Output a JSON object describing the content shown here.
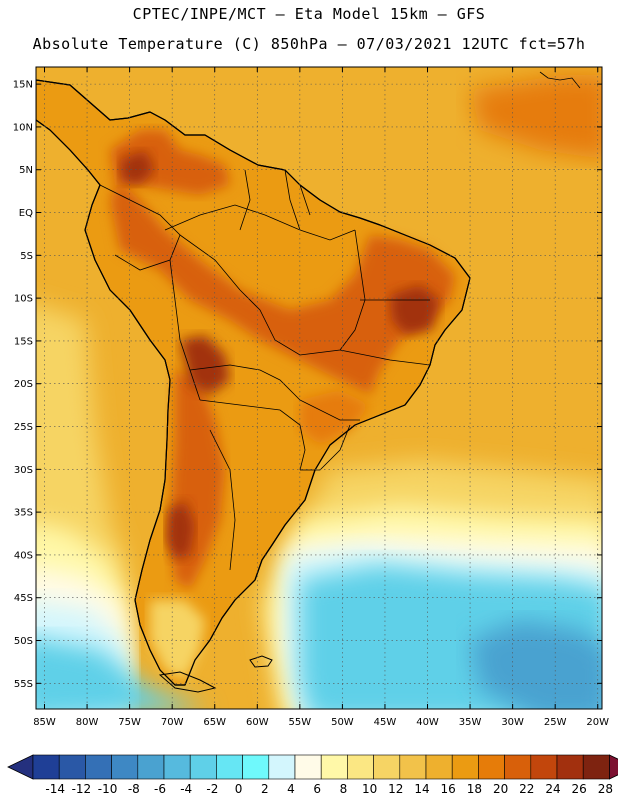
{
  "title": {
    "line1": "CPTEC/INPE/MCT –  Eta Model 15km – GFS",
    "line2": "Absolute Temperature (C) 850hPa – 07/03/2021 12UTC fct=57h"
  },
  "lat_labels": [
    "15N",
    "10N",
    "5N",
    "EQ",
    "5S",
    "10S",
    "15S",
    "20S",
    "25S",
    "30S",
    "35S",
    "40S",
    "45S",
    "50S",
    "55S"
  ],
  "lat_values": [
    15,
    10,
    5,
    0,
    -5,
    -10,
    -15,
    -20,
    -25,
    -30,
    -35,
    -40,
    -45,
    -50,
    -55
  ],
  "lon_labels": [
    "85W",
    "80W",
    "75W",
    "70W",
    "65W",
    "60W",
    "55W",
    "50W",
    "45W",
    "40W",
    "35W",
    "30W",
    "25W",
    "20W"
  ],
  "lon_values": [
    -85,
    -80,
    -75,
    -70,
    -65,
    -60,
    -55,
    -50,
    -45,
    -40,
    -35,
    -30,
    -25,
    -20
  ],
  "colorbar": {
    "labels": [
      "-14",
      "-12",
      "-10",
      "-8",
      "-6",
      "-4",
      "-2",
      "0",
      "2",
      "4",
      "6",
      "8",
      "10",
      "12",
      "14",
      "16",
      "18",
      "20",
      "22",
      "24",
      "26",
      "28"
    ],
    "colors": [
      "#1f3f96",
      "#2a58a6",
      "#3470b6",
      "#3e88c4",
      "#4aa2d0",
      "#56bade",
      "#5fd0e8",
      "#66e6f4",
      "#6ff9fc",
      "#d3f6fd",
      "#fffbe8",
      "#fff8a8",
      "#fbe783",
      "#f6d464",
      "#f2c24a",
      "#eeb02e",
      "#eb9b12",
      "#e67c09",
      "#d8600a",
      "#c2460c",
      "#a2300e",
      "#7e2310"
    ],
    "under_color": "#24307e",
    "over_color": "#7c1030"
  },
  "map_colors": {
    "sea_warm": "#eeb02e",
    "sea_mid": "#f6d464",
    "sea_pale": "#fff8a8",
    "sea_cream": "#fffbe8",
    "sea_cool": "#d3f6fd",
    "sea_cold": "#5fd0e8",
    "sea_colder": "#4aa2d0",
    "land_hot": "#d8600a",
    "land_warm": "#eb9b12",
    "land_patch": "#e67c09",
    "land_core": "#a2300e"
  },
  "map_extent": {
    "lon_min": -86,
    "lon_max": -19.5,
    "lat_min": -58,
    "lat_max": 17
  }
}
